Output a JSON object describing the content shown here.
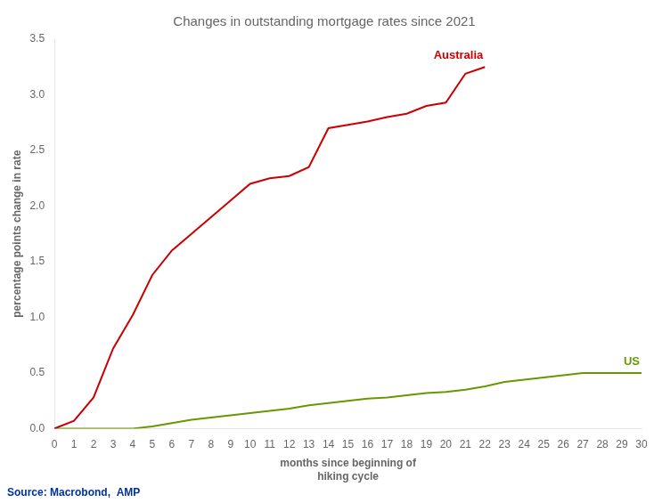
{
  "chart_data": {
    "type": "line",
    "title": "Changes in outstanding mortgage rates since 2021",
    "ylabel": "percentage points change in rate",
    "xlabel": "months since beginning of\nhiking cycle",
    "annotations": [
      "Source: Macrobond,  AMP"
    ],
    "xlim": [
      0,
      30
    ],
    "ylim": [
      0,
      3.5
    ],
    "xticks": [
      0,
      1,
      2,
      3,
      4,
      5,
      6,
      7,
      8,
      9,
      10,
      11,
      12,
      13,
      14,
      15,
      16,
      17,
      18,
      19,
      20,
      21,
      22,
      23,
      24,
      25,
      26,
      27,
      28,
      29,
      30
    ],
    "yticks": [
      {
        "value": 0.0,
        "label": "0.0"
      },
      0.5,
      {
        "value": 1.0,
        "label": "1.0"
      },
      1.5,
      {
        "value": 2.0,
        "label": "2.0"
      },
      2.5,
      {
        "value": 3.0,
        "label": "3.0"
      },
      3.5
    ],
    "grid": false,
    "series": [
      {
        "name": "Australia",
        "color": "#cc0000",
        "x": [
          0,
          1,
          2,
          3,
          4,
          5,
          6,
          7,
          8,
          9,
          10,
          11,
          12,
          13,
          14,
          15,
          16,
          17,
          18,
          19,
          20,
          21,
          22
        ],
        "values": [
          0.0,
          0.07,
          0.28,
          0.72,
          1.02,
          1.38,
          1.6,
          1.75,
          1.9,
          2.05,
          2.2,
          2.25,
          2.27,
          2.35,
          2.7,
          2.73,
          2.76,
          2.8,
          2.83,
          2.9,
          2.93,
          3.19,
          3.25
        ]
      },
      {
        "name": "US",
        "color": "#669900",
        "x": [
          0,
          1,
          2,
          3,
          4,
          5,
          6,
          7,
          8,
          9,
          10,
          11,
          12,
          13,
          14,
          15,
          16,
          17,
          18,
          19,
          20,
          21,
          22,
          23,
          24,
          25,
          26,
          27,
          28,
          29,
          30
        ],
        "values": [
          0.0,
          0.0,
          0.0,
          0.0,
          0.0,
          0.02,
          0.05,
          0.08,
          0.1,
          0.12,
          0.14,
          0.16,
          0.18,
          0.21,
          0.23,
          0.25,
          0.27,
          0.28,
          0.3,
          0.32,
          0.33,
          0.35,
          0.38,
          0.42,
          0.44,
          0.46,
          0.48,
          0.5,
          0.5,
          0.5,
          0.5
        ]
      }
    ]
  }
}
